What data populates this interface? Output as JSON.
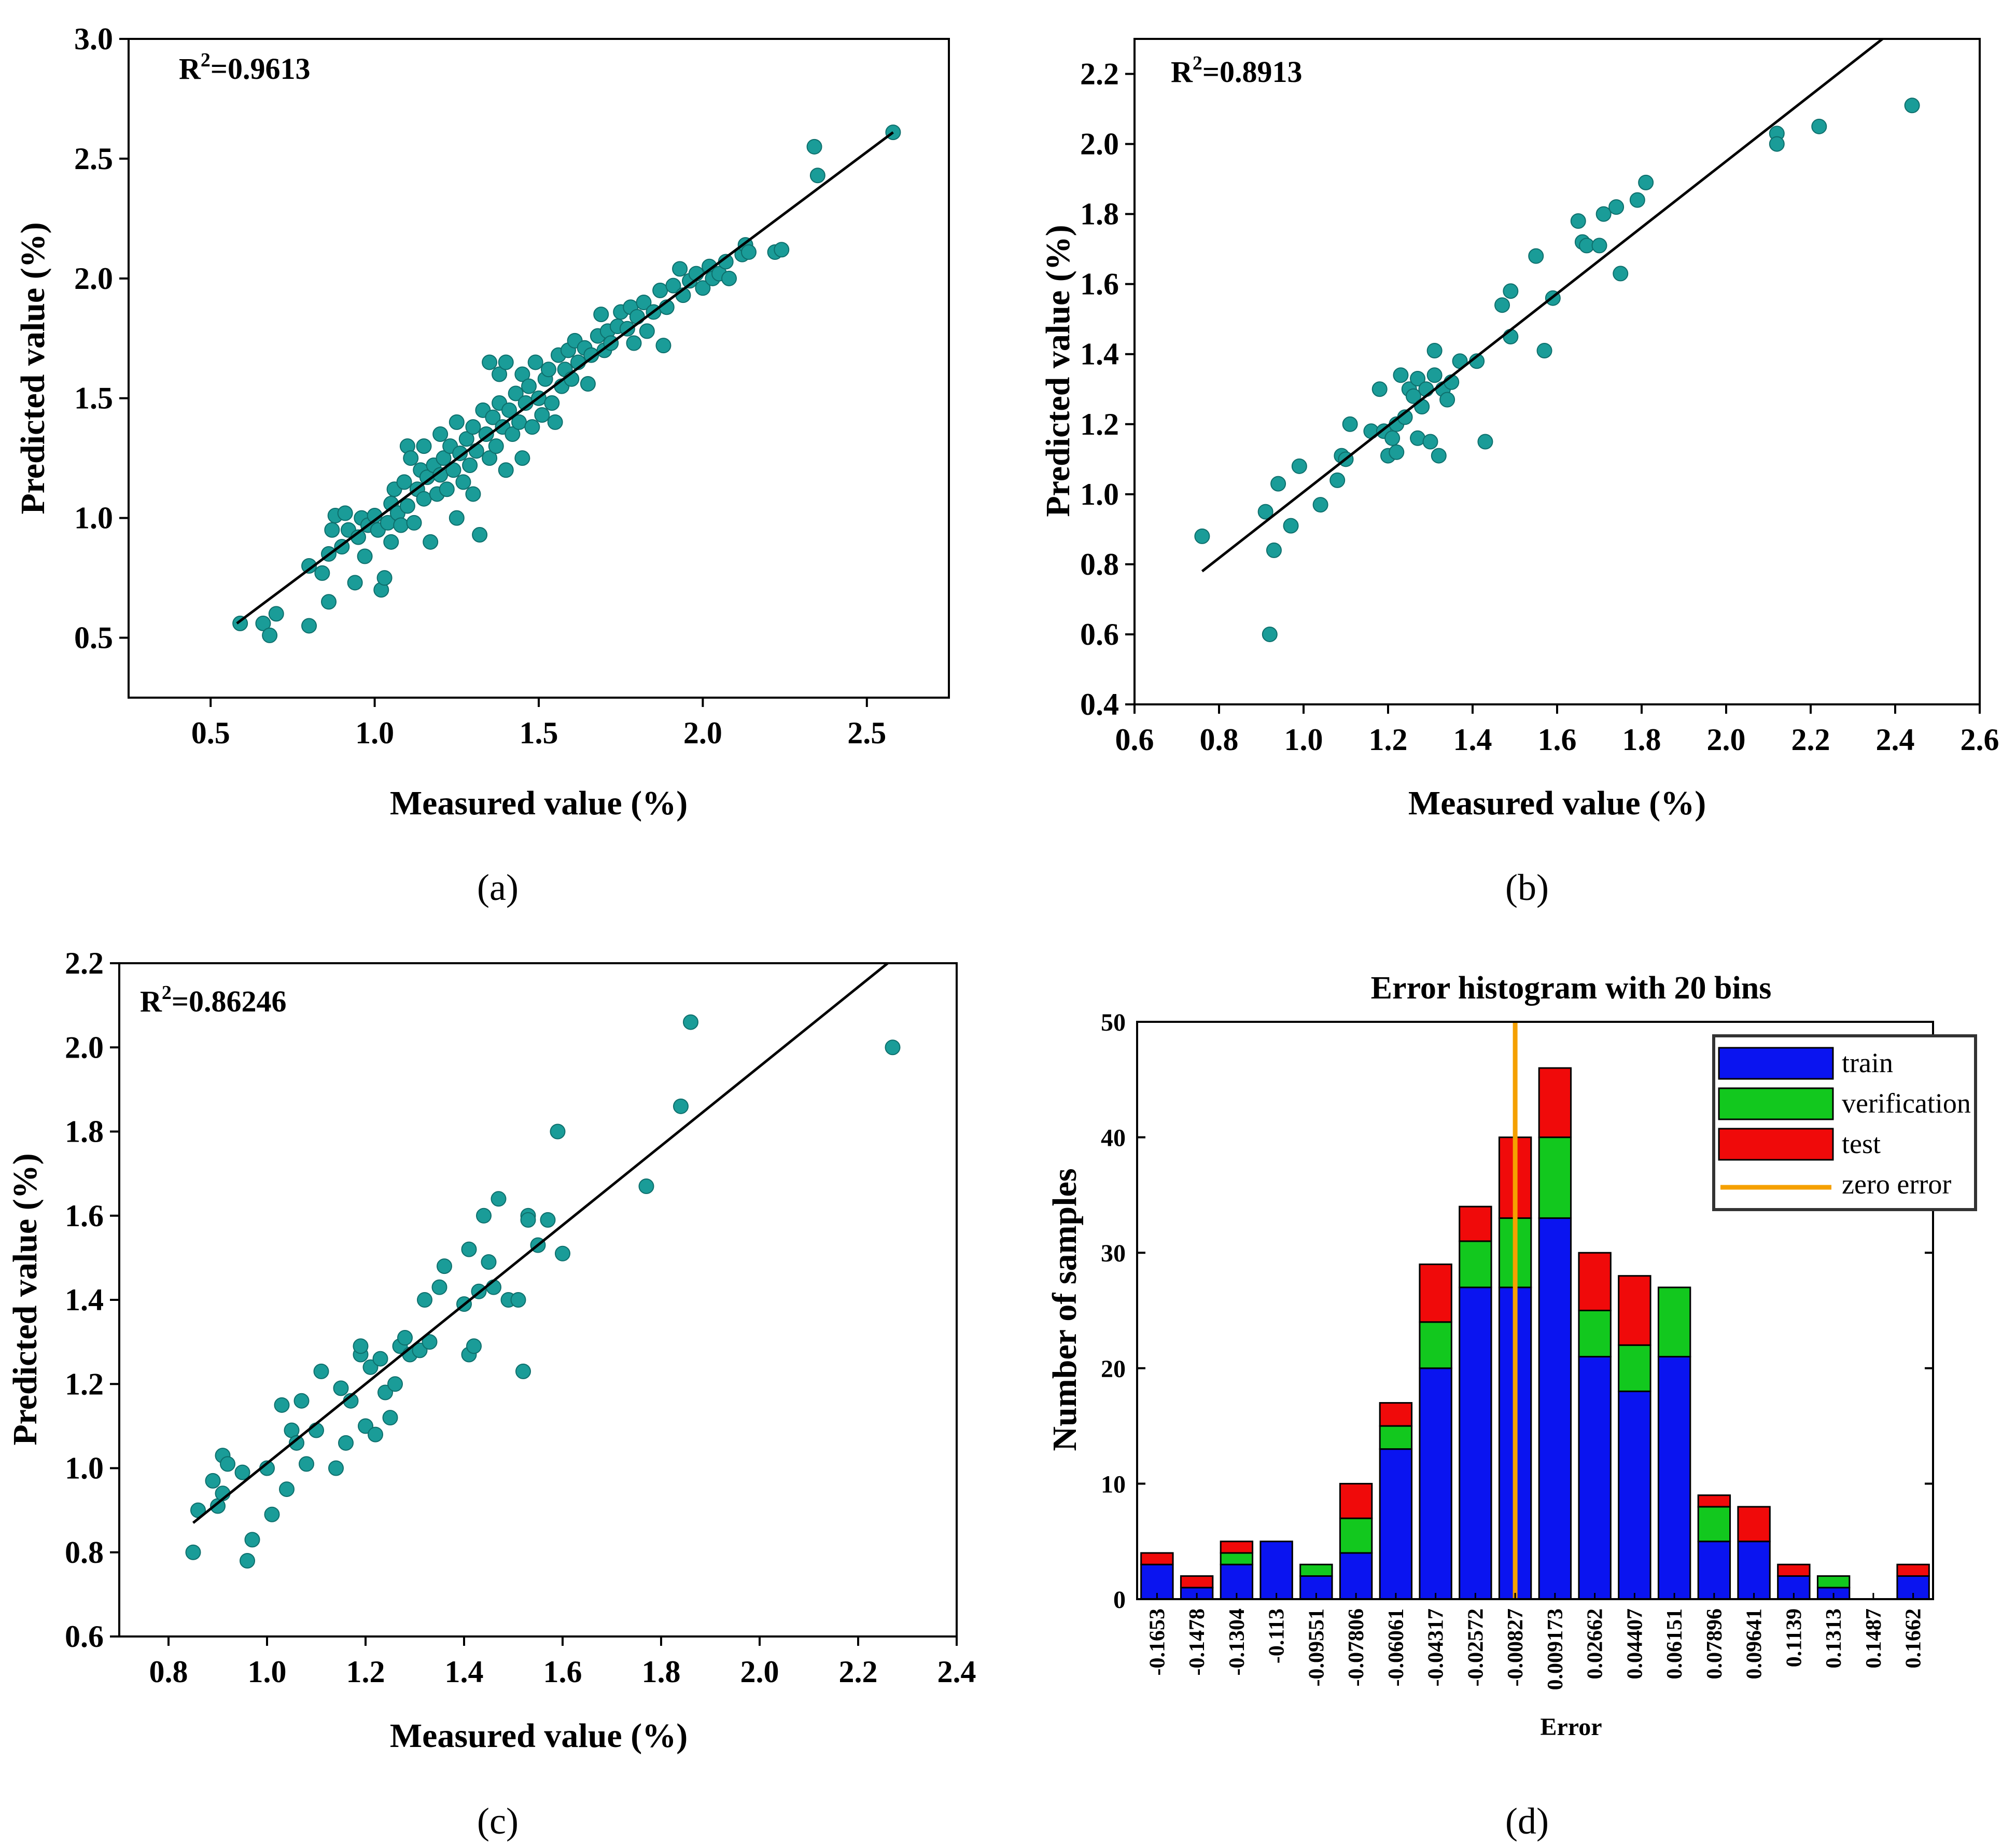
{
  "figure": {
    "panel_labels": [
      "(a)",
      "(b)",
      "(c)",
      "(d)"
    ]
  },
  "colors": {
    "point": "#1a9c98",
    "fit_line": "#000000",
    "train": "#0a14f0",
    "verification": "#12c81e",
    "test": "#f00a0a",
    "zero_error": "#f5a000"
  },
  "chart_data": [
    {
      "panel": "(a)",
      "type": "scatter",
      "annotation": "R²=0.9613",
      "r2_base": "R",
      "r2_sup": "2",
      "r2_value": "=0.9613",
      "xlabel": "Measured value (%)",
      "ylabel": "Predicted value (%)",
      "xlim": [
        0.25,
        2.75
      ],
      "ylim": [
        0.25,
        3.0
      ],
      "xticks": [
        0.5,
        1.0,
        1.5,
        2.0,
        2.5
      ],
      "xtick_labels": [
        "0.5",
        "1.0",
        "1.5",
        "2.0",
        "2.5"
      ],
      "yticks": [
        0.5,
        1.0,
        1.5,
        2.0,
        2.5,
        3.0
      ],
      "ytick_labels": [
        "0.5",
        "1.0",
        "1.5",
        "2.0",
        "2.5",
        "3.0"
      ],
      "fit_line": {
        "x": [
          0.58,
          2.58
        ],
        "y": [
          0.56,
          2.61
        ]
      },
      "points": [
        [
          0.59,
          0.56
        ],
        [
          0.66,
          0.56
        ],
        [
          0.68,
          0.51
        ],
        [
          0.7,
          0.6
        ],
        [
          0.8,
          0.55
        ],
        [
          0.8,
          0.8
        ],
        [
          0.84,
          0.77
        ],
        [
          0.86,
          0.65
        ],
        [
          0.86,
          0.85
        ],
        [
          0.87,
          0.95
        ],
        [
          0.88,
          1.01
        ],
        [
          0.9,
          0.88
        ],
        [
          0.91,
          1.02
        ],
        [
          0.92,
          0.95
        ],
        [
          0.94,
          0.73
        ],
        [
          0.95,
          0.92
        ],
        [
          0.96,
          1.0
        ],
        [
          0.97,
          0.84
        ],
        [
          0.98,
          0.97
        ],
        [
          1.0,
          1.01
        ],
        [
          1.01,
          0.95
        ],
        [
          1.02,
          0.7
        ],
        [
          1.03,
          0.75
        ],
        [
          1.04,
          0.98
        ],
        [
          1.05,
          1.06
        ],
        [
          1.05,
          0.9
        ],
        [
          1.06,
          1.12
        ],
        [
          1.07,
          1.02
        ],
        [
          1.08,
          0.97
        ],
        [
          1.09,
          1.15
        ],
        [
          1.1,
          1.05
        ],
        [
          1.1,
          1.3
        ],
        [
          1.11,
          1.25
        ],
        [
          1.12,
          0.98
        ],
        [
          1.13,
          1.12
        ],
        [
          1.14,
          1.2
        ],
        [
          1.15,
          1.08
        ],
        [
          1.15,
          1.3
        ],
        [
          1.16,
          1.17
        ],
        [
          1.17,
          0.9
        ],
        [
          1.18,
          1.22
        ],
        [
          1.19,
          1.1
        ],
        [
          1.2,
          1.35
        ],
        [
          1.2,
          1.18
        ],
        [
          1.21,
          1.25
        ],
        [
          1.22,
          1.12
        ],
        [
          1.23,
          1.3
        ],
        [
          1.24,
          1.2
        ],
        [
          1.25,
          1.0
        ],
        [
          1.25,
          1.4
        ],
        [
          1.26,
          1.27
        ],
        [
          1.27,
          1.15
        ],
        [
          1.28,
          1.33
        ],
        [
          1.29,
          1.22
        ],
        [
          1.3,
          1.38
        ],
        [
          1.3,
          1.1
        ],
        [
          1.31,
          1.28
        ],
        [
          1.32,
          0.93
        ],
        [
          1.33,
          1.45
        ],
        [
          1.34,
          1.35
        ],
        [
          1.35,
          1.25
        ],
        [
          1.35,
          1.65
        ],
        [
          1.36,
          1.42
        ],
        [
          1.37,
          1.3
        ],
        [
          1.38,
          1.48
        ],
        [
          1.38,
          1.6
        ],
        [
          1.39,
          1.38
        ],
        [
          1.4,
          1.2
        ],
        [
          1.4,
          1.65
        ],
        [
          1.41,
          1.45
        ],
        [
          1.42,
          1.35
        ],
        [
          1.43,
          1.52
        ],
        [
          1.44,
          1.4
        ],
        [
          1.45,
          1.25
        ],
        [
          1.45,
          1.6
        ],
        [
          1.46,
          1.48
        ],
        [
          1.47,
          1.55
        ],
        [
          1.48,
          1.38
        ],
        [
          1.49,
          1.65
        ],
        [
          1.5,
          1.5
        ],
        [
          1.51,
          1.43
        ],
        [
          1.52,
          1.58
        ],
        [
          1.53,
          1.62
        ],
        [
          1.54,
          1.48
        ],
        [
          1.55,
          1.4
        ],
        [
          1.56,
          1.68
        ],
        [
          1.57,
          1.55
        ],
        [
          1.58,
          1.62
        ],
        [
          1.59,
          1.7
        ],
        [
          1.6,
          1.58
        ],
        [
          1.61,
          1.74
        ],
        [
          1.62,
          1.65
        ],
        [
          1.64,
          1.71
        ],
        [
          1.65,
          1.56
        ],
        [
          1.66,
          1.68
        ],
        [
          1.68,
          1.76
        ],
        [
          1.69,
          1.85
        ],
        [
          1.7,
          1.7
        ],
        [
          1.71,
          1.78
        ],
        [
          1.72,
          1.73
        ],
        [
          1.74,
          1.8
        ],
        [
          1.75,
          1.86
        ],
        [
          1.77,
          1.79
        ],
        [
          1.78,
          1.88
        ],
        [
          1.79,
          1.73
        ],
        [
          1.8,
          1.84
        ],
        [
          1.82,
          1.9
        ],
        [
          1.83,
          1.78
        ],
        [
          1.85,
          1.86
        ],
        [
          1.87,
          1.95
        ],
        [
          1.88,
          1.72
        ],
        [
          1.89,
          1.88
        ],
        [
          1.91,
          1.97
        ],
        [
          1.93,
          2.04
        ],
        [
          1.94,
          1.93
        ],
        [
          1.96,
          1.99
        ],
        [
          1.98,
          2.02
        ],
        [
          2.0,
          1.96
        ],
        [
          2.02,
          2.05
        ],
        [
          2.03,
          2.0
        ],
        [
          2.05,
          2.02
        ],
        [
          2.07,
          2.07
        ],
        [
          2.08,
          2.0
        ],
        [
          2.12,
          2.1
        ],
        [
          2.13,
          2.14
        ],
        [
          2.14,
          2.11
        ],
        [
          2.22,
          2.11
        ],
        [
          2.24,
          2.12
        ],
        [
          2.34,
          2.55
        ],
        [
          2.35,
          2.43
        ],
        [
          2.58,
          2.61
        ]
      ]
    },
    {
      "panel": "(b)",
      "type": "scatter",
      "annotation": "R²=0.8913",
      "r2_base": "R",
      "r2_sup": "2",
      "r2_value": "=0.8913",
      "xlabel": "Measured value (%)",
      "ylabel": "Predicted value (%)",
      "xlim": [
        0.6,
        2.6
      ],
      "ylim": [
        0.4,
        2.3
      ],
      "xticks": [
        0.6,
        0.8,
        1.0,
        1.2,
        1.4,
        1.6,
        1.8,
        2.0,
        2.2,
        2.4,
        2.6
      ],
      "xtick_labels": [
        "0.6",
        "0.8",
        "1.0",
        "1.2",
        "1.4",
        "1.6",
        "1.8",
        "2.0",
        "2.2",
        "2.4",
        "2.6"
      ],
      "yticks": [
        0.4,
        0.6,
        0.8,
        1.0,
        1.2,
        1.4,
        1.6,
        1.8,
        2.0,
        2.2
      ],
      "ytick_labels": [
        "0.4",
        "0.6",
        "0.8",
        "1.0",
        "1.2",
        "1.4",
        "1.6",
        "1.8",
        "2.0",
        "2.2"
      ],
      "fit_line": {
        "x": [
          0.76,
          2.37
        ],
        "y": [
          0.78,
          2.3
        ]
      },
      "points": [
        [
          0.76,
          0.88
        ],
        [
          0.91,
          0.95
        ],
        [
          0.92,
          0.6
        ],
        [
          0.93,
          0.84
        ],
        [
          0.94,
          1.03
        ],
        [
          0.97,
          0.91
        ],
        [
          0.99,
          1.08
        ],
        [
          1.04,
          0.97
        ],
        [
          1.08,
          1.04
        ],
        [
          1.09,
          1.11
        ],
        [
          1.1,
          1.1
        ],
        [
          1.11,
          1.2
        ],
        [
          1.16,
          1.18
        ],
        [
          1.18,
          1.3
        ],
        [
          1.19,
          1.18
        ],
        [
          1.2,
          1.11
        ],
        [
          1.21,
          1.16
        ],
        [
          1.22,
          1.12
        ],
        [
          1.22,
          1.2
        ],
        [
          1.23,
          1.34
        ],
        [
          1.24,
          1.22
        ],
        [
          1.25,
          1.3
        ],
        [
          1.26,
          1.28
        ],
        [
          1.27,
          1.16
        ],
        [
          1.27,
          1.33
        ],
        [
          1.28,
          1.25
        ],
        [
          1.29,
          1.3
        ],
        [
          1.3,
          1.15
        ],
        [
          1.31,
          1.34
        ],
        [
          1.31,
          1.41
        ],
        [
          1.32,
          1.11
        ],
        [
          1.33,
          1.3
        ],
        [
          1.34,
          1.27
        ],
        [
          1.35,
          1.32
        ],
        [
          1.37,
          1.38
        ],
        [
          1.41,
          1.38
        ],
        [
          1.43,
          1.15
        ],
        [
          1.47,
          1.54
        ],
        [
          1.49,
          1.45
        ],
        [
          1.49,
          1.58
        ],
        [
          1.55,
          1.68
        ],
        [
          1.57,
          1.41
        ],
        [
          1.59,
          1.56
        ],
        [
          1.65,
          1.78
        ],
        [
          1.66,
          1.72
        ],
        [
          1.67,
          1.71
        ],
        [
          1.7,
          1.71
        ],
        [
          1.71,
          1.8
        ],
        [
          1.74,
          1.82
        ],
        [
          1.75,
          1.63
        ],
        [
          1.79,
          1.84
        ],
        [
          1.81,
          1.89
        ],
        [
          2.12,
          2.03
        ],
        [
          2.12,
          2.0
        ],
        [
          2.22,
          2.05
        ],
        [
          2.44,
          2.11
        ]
      ]
    },
    {
      "panel": "(c)",
      "type": "scatter",
      "annotation": "R²=0.86246",
      "r2_base": "R",
      "r2_sup": "2",
      "r2_value": "=0.86246",
      "xlabel": "Measured value (%)",
      "ylabel": "Predicted value (%)",
      "xlim": [
        0.7,
        2.4
      ],
      "ylim": [
        0.6,
        2.2
      ],
      "xticks": [
        0.8,
        1.0,
        1.2,
        1.4,
        1.6,
        1.8,
        2.0,
        2.2,
        2.4
      ],
      "xtick_labels": [
        "0.8",
        "1.0",
        "1.2",
        "1.4",
        "1.6",
        "1.8",
        "2.0",
        "2.2",
        "2.4"
      ],
      "yticks": [
        0.6,
        0.8,
        1.0,
        1.2,
        1.4,
        1.6,
        1.8,
        2.0,
        2.2
      ],
      "ytick_labels": [
        "0.6",
        "0.8",
        "1.0",
        "1.2",
        "1.4",
        "1.6",
        "1.8",
        "2.0",
        "2.2"
      ],
      "fit_line": {
        "x": [
          0.85,
          2.26
        ],
        "y": [
          0.87,
          2.2
        ]
      },
      "points": [
        [
          0.85,
          0.8
        ],
        [
          0.86,
          0.9
        ],
        [
          0.89,
          0.97
        ],
        [
          0.9,
          0.91
        ],
        [
          0.91,
          0.94
        ],
        [
          0.91,
          1.03
        ],
        [
          0.92,
          1.01
        ],
        [
          0.95,
          0.99
        ],
        [
          0.96,
          0.78
        ],
        [
          0.97,
          0.83
        ],
        [
          1.0,
          1.0
        ],
        [
          1.01,
          0.89
        ],
        [
          1.03,
          1.15
        ],
        [
          1.04,
          0.95
        ],
        [
          1.05,
          1.09
        ],
        [
          1.06,
          1.06
        ],
        [
          1.07,
          1.16
        ],
        [
          1.08,
          1.01
        ],
        [
          1.1,
          1.09
        ],
        [
          1.11,
          1.23
        ],
        [
          1.14,
          1.0
        ],
        [
          1.15,
          1.19
        ],
        [
          1.16,
          1.06
        ],
        [
          1.17,
          1.16
        ],
        [
          1.19,
          1.27
        ],
        [
          1.19,
          1.29
        ],
        [
          1.2,
          1.1
        ],
        [
          1.21,
          1.24
        ],
        [
          1.22,
          1.08
        ],
        [
          1.23,
          1.26
        ],
        [
          1.24,
          1.18
        ],
        [
          1.25,
          1.12
        ],
        [
          1.26,
          1.2
        ],
        [
          1.27,
          1.29
        ],
        [
          1.28,
          1.31
        ],
        [
          1.29,
          1.27
        ],
        [
          1.31,
          1.28
        ],
        [
          1.32,
          1.4
        ],
        [
          1.33,
          1.3
        ],
        [
          1.35,
          1.43
        ],
        [
          1.36,
          1.48
        ],
        [
          1.4,
          1.39
        ],
        [
          1.41,
          1.27
        ],
        [
          1.41,
          1.52
        ],
        [
          1.42,
          1.29
        ],
        [
          1.43,
          1.42
        ],
        [
          1.44,
          1.6
        ],
        [
          1.45,
          1.49
        ],
        [
          1.46,
          1.43
        ],
        [
          1.47,
          1.64
        ],
        [
          1.49,
          1.4
        ],
        [
          1.51,
          1.4
        ],
        [
          1.52,
          1.23
        ],
        [
          1.53,
          1.6
        ],
        [
          1.53,
          1.59
        ],
        [
          1.55,
          1.53
        ],
        [
          1.57,
          1.59
        ],
        [
          1.59,
          1.8
        ],
        [
          1.6,
          1.51
        ],
        [
          1.77,
          1.67
        ],
        [
          1.84,
          1.86
        ],
        [
          1.86,
          2.06
        ],
        [
          2.27,
          2.0
        ]
      ]
    },
    {
      "panel": "(d)",
      "type": "bar",
      "stacked": true,
      "title": "Error histogram with 20 bins",
      "xlabel": "Error",
      "ylabel": "Number of samples",
      "ylim": [
        0,
        50
      ],
      "yticks": [
        0,
        10,
        20,
        30,
        40,
        50
      ],
      "ytick_labels": [
        "0",
        "10",
        "20",
        "30",
        "40",
        "50"
      ],
      "categories": [
        "-0.1653",
        "-0.1478",
        "-0.1304",
        "-0.113",
        "-0.09551",
        "-0.07806",
        "-0.06061",
        "-0.04317",
        "-0.02572",
        "-0.00827",
        "0.009173",
        "0.02662",
        "0.04407",
        "0.06151",
        "0.07896",
        "0.09641",
        "0.1139",
        "0.1313",
        "0.1487",
        "0.1662"
      ],
      "series": [
        {
          "name": "train",
          "values": [
            3,
            1,
            3,
            5,
            2,
            4,
            13,
            20,
            27,
            27,
            33,
            21,
            18,
            21,
            5,
            5,
            2,
            1,
            0,
            2
          ]
        },
        {
          "name": "verification",
          "values": [
            0,
            0,
            1,
            0,
            1,
            3,
            2,
            4,
            4,
            6,
            7,
            4,
            4,
            6,
            3,
            0,
            0,
            1,
            0,
            0
          ]
        },
        {
          "name": "test",
          "values": [
            1,
            1,
            1,
            0,
            0,
            3,
            2,
            5,
            3,
            7,
            6,
            5,
            6,
            0,
            1,
            3,
            1,
            0,
            0,
            1
          ]
        }
      ],
      "zero_error_line": {
        "name": "zero error",
        "x_position_bins": 9.5
      },
      "legend": {
        "placement": "top-right",
        "entries": [
          "train",
          "verification",
          "test",
          "zero error"
        ]
      }
    }
  ]
}
